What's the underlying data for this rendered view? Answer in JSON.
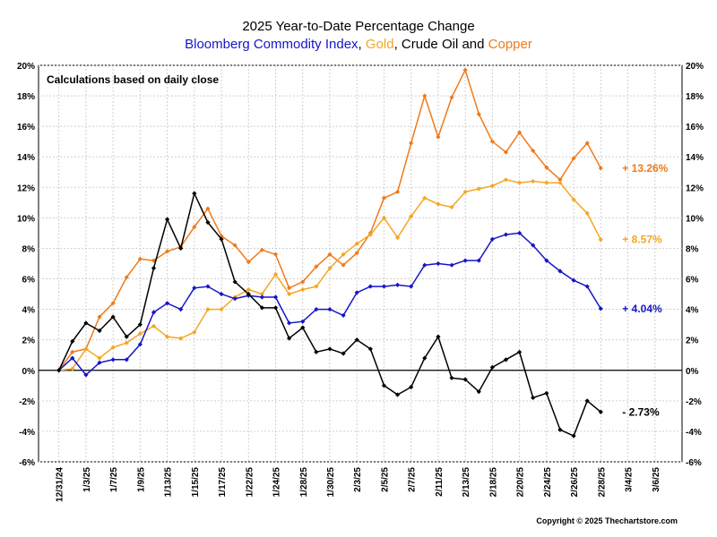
{
  "chart_data": {
    "type": "line",
    "title": "2025 Year-to-Date Percentage Change",
    "subtitle_parts": [
      {
        "text": "Bloomberg Commodity Index",
        "color": "#1515c8"
      },
      {
        "text": ", ",
        "color": "#000000"
      },
      {
        "text": "Gold",
        "color": "#f5a623"
      },
      {
        "text": ", ",
        "color": "#000000"
      },
      {
        "text": "Crude Oil",
        "color": "#000000"
      },
      {
        "text": " and ",
        "color": "#000000"
      },
      {
        "text": "Copper",
        "color": "#ef7a1a"
      }
    ],
    "note": "Calculations based on daily close",
    "copyright": "Copyright © 2025 Thechartstore.com",
    "ylim": [
      -6,
      20
    ],
    "yticks": [
      -6,
      -4,
      -2,
      0,
      2,
      4,
      6,
      8,
      10,
      12,
      14,
      16,
      18,
      20
    ],
    "ytick_labels": [
      "-6%",
      "-4%",
      "-2%",
      "0%",
      "2%",
      "4%",
      "6%",
      "8%",
      "10%",
      "12%",
      "14%",
      "16%",
      "18%",
      "20%"
    ],
    "x_days": 46,
    "x_range": [
      -1.5,
      46
    ],
    "xticks": [
      {
        "day": 0,
        "label": "12/31/24"
      },
      {
        "day": 2,
        "label": "1/3/25"
      },
      {
        "day": 4,
        "label": "1/7/25"
      },
      {
        "day": 6,
        "label": "1/9/25"
      },
      {
        "day": 8,
        "label": "1/13/25"
      },
      {
        "day": 10,
        "label": "1/15/25"
      },
      {
        "day": 12,
        "label": "1/17/25"
      },
      {
        "day": 14,
        "label": "1/22/25"
      },
      {
        "day": 16,
        "label": "1/24/25"
      },
      {
        "day": 18,
        "label": "1/28/25"
      },
      {
        "day": 20,
        "label": "1/30/25"
      },
      {
        "day": 22,
        "label": "2/3/25"
      },
      {
        "day": 24,
        "label": "2/5/25"
      },
      {
        "day": 26,
        "label": "2/7/25"
      },
      {
        "day": 28,
        "label": "2/11/25"
      },
      {
        "day": 30,
        "label": "2/13/25"
      },
      {
        "day": 32,
        "label": "2/18/25"
      },
      {
        "day": 34,
        "label": "2/20/25"
      },
      {
        "day": 36,
        "label": "2/24/25"
      },
      {
        "day": 38,
        "label": "2/26/25"
      },
      {
        "day": 40,
        "label": "2/28/25"
      },
      {
        "day": 42,
        "label": "3/4/25"
      },
      {
        "day": 44,
        "label": "3/6/25"
      }
    ],
    "series": [
      {
        "name": "Copper",
        "color": "#ef7a1a",
        "end_label": "+ 13.26%",
        "values": [
          0,
          1.2,
          1.4,
          3.5,
          4.4,
          6.1,
          7.3,
          7.2,
          7.8,
          8.1,
          9.4,
          10.6,
          8.8,
          8.2,
          7.1,
          7.9,
          7.6,
          5.4,
          5.8,
          6.8,
          7.6,
          6.9,
          7.7,
          9.0,
          11.3,
          11.7,
          14.9,
          18.0,
          15.3,
          17.9,
          19.7,
          16.8,
          15.0,
          14.3,
          15.6,
          14.4,
          13.3,
          12.5,
          13.9,
          14.9,
          13.26
        ]
      },
      {
        "name": "Gold",
        "color": "#f5a623",
        "end_label": "+ 8.57%",
        "values": [
          0,
          0.1,
          1.4,
          0.8,
          1.5,
          1.8,
          2.4,
          2.9,
          2.2,
          2.1,
          2.5,
          4.0,
          4.0,
          4.8,
          5.3,
          5.0,
          6.3,
          5.0,
          5.3,
          5.5,
          6.7,
          7.6,
          8.3,
          8.9,
          10.0,
          8.7,
          10.1,
          11.3,
          10.9,
          10.7,
          11.7,
          11.9,
          12.1,
          12.5,
          12.3,
          12.4,
          12.3,
          12.3,
          11.2,
          10.3,
          8.57
        ]
      },
      {
        "name": "Bloomberg Commodity Index",
        "color": "#1515c8",
        "end_label": "+ 4.04%",
        "values": [
          0,
          0.8,
          -0.3,
          0.5,
          0.7,
          0.7,
          1.7,
          3.8,
          4.4,
          4.0,
          5.4,
          5.5,
          5.0,
          4.7,
          4.9,
          4.8,
          4.8,
          3.1,
          3.2,
          4.0,
          4.0,
          3.6,
          5.1,
          5.5,
          5.5,
          5.6,
          5.5,
          6.9,
          7.0,
          6.9,
          7.2,
          7.2,
          8.6,
          8.9,
          9.0,
          8.2,
          7.2,
          6.5,
          5.9,
          5.5,
          4.04
        ]
      },
      {
        "name": "Crude Oil",
        "color": "#000000",
        "end_label": "- 2.73%",
        "values": [
          0,
          1.9,
          3.1,
          2.6,
          3.5,
          2.2,
          3.0,
          6.7,
          9.9,
          8.0,
          11.6,
          9.7,
          8.6,
          5.8,
          5.0,
          4.1,
          4.1,
          2.1,
          2.8,
          1.2,
          1.4,
          1.1,
          2.0,
          1.4,
          -1.0,
          -1.6,
          -1.1,
          0.8,
          2.2,
          -0.5,
          -0.6,
          -1.4,
          0.2,
          0.7,
          1.2,
          -1.8,
          -1.5,
          -3.9,
          -4.3,
          -2.0,
          -2.73
        ]
      }
    ]
  }
}
